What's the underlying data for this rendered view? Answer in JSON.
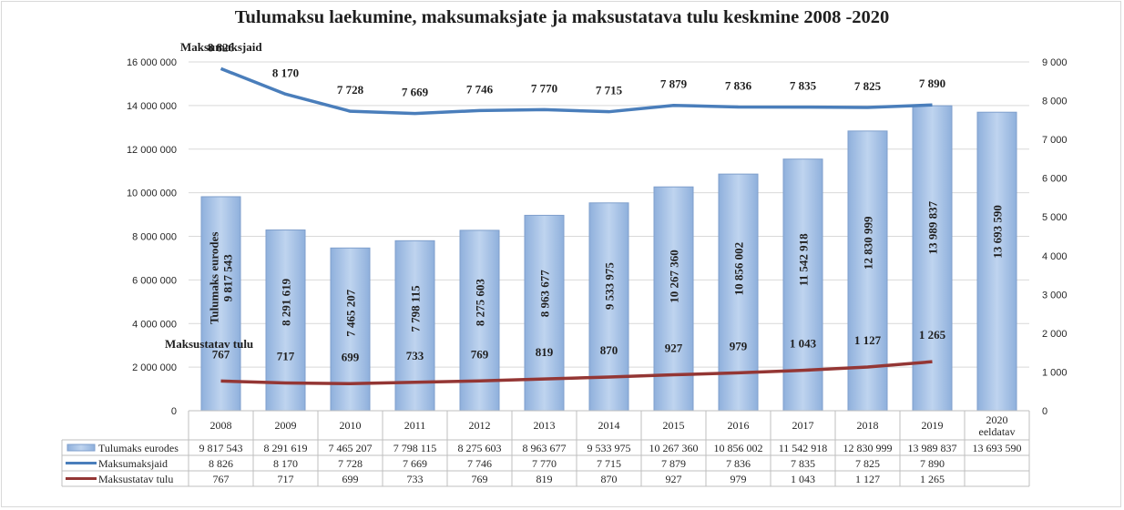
{
  "chart_data": {
    "type": "bar",
    "title": "Tulumaksu laekumine, maksumaksjate ja maksustatava tulu keskmine 2008 -2020",
    "categories": [
      "2008",
      "2009",
      "2010",
      "2011",
      "2012",
      "2013",
      "2014",
      "2015",
      "2016",
      "2017",
      "2018",
      "2019",
      "2020 eeldatav"
    ],
    "category_lines": [
      [
        "2008"
      ],
      [
        "2009"
      ],
      [
        "2010"
      ],
      [
        "2011"
      ],
      [
        "2012"
      ],
      [
        "2013"
      ],
      [
        "2014"
      ],
      [
        "2015"
      ],
      [
        "2016"
      ],
      [
        "2017"
      ],
      [
        "2018"
      ],
      [
        "2019"
      ],
      [
        "2020",
        "eeldatav"
      ]
    ],
    "y_left": {
      "ylim": [
        0,
        16000000
      ],
      "ticks": [
        "0",
        "2 000 000",
        "4 000 000",
        "6 000 000",
        "8 000 000",
        "10 000 000",
        "12 000 000",
        "14 000 000",
        "16 000 000"
      ]
    },
    "y_right": {
      "ylim": [
        0,
        9000
      ],
      "ticks": [
        "0",
        "1 000",
        "2 000",
        "3 000",
        "4 000",
        "5 000",
        "6 000",
        "7 000",
        "8 000",
        "9 000"
      ]
    },
    "series": [
      {
        "name": "Tulumaks eurodes",
        "kind": "bar",
        "axis": "left",
        "color": "#a4c2e8",
        "values": [
          9817543,
          8291619,
          7465207,
          7798115,
          8275603,
          8963677,
          9533975,
          10267360,
          10856002,
          11542918,
          12830999,
          13989837,
          13693590
        ],
        "labels": [
          "9 817 543",
          "8 291 619",
          "7 465 207",
          "7 798 115",
          "8 275 603",
          "8 963 677",
          "9 533 975",
          "10 267 360",
          "10 856 002",
          "11 542 918",
          "12 830 999",
          "13 989 837",
          "13 693 590"
        ],
        "first_bar_label": "Tulumaks eurodes"
      },
      {
        "name": "Maksumaksjaid",
        "kind": "line",
        "axis": "right",
        "color": "#4a7ebb",
        "values": [
          8826,
          8170,
          7728,
          7669,
          7746,
          7770,
          7715,
          7879,
          7836,
          7835,
          7825,
          7890,
          null
        ],
        "labels": [
          "8 826",
          "8 170",
          "7 728",
          "7 669",
          "7 746",
          "7 770",
          "7 715",
          "7 879",
          "7 836",
          "7 835",
          "7 825",
          "7 890",
          ""
        ]
      },
      {
        "name": "Maksustatav tulu",
        "kind": "line",
        "axis": "right",
        "color": "#943634",
        "values": [
          767,
          717,
          699,
          733,
          769,
          819,
          870,
          927,
          979,
          1043,
          1127,
          1265,
          null
        ],
        "labels": [
          "767",
          "717",
          "699",
          "733",
          "769",
          "819",
          "870",
          "927",
          "979",
          "1 043",
          "1 127",
          "1 265",
          ""
        ]
      }
    ],
    "annotations": [
      "Maksumaksjaid",
      "Maksustatav tulu"
    ],
    "data_table": true,
    "grid": true
  }
}
